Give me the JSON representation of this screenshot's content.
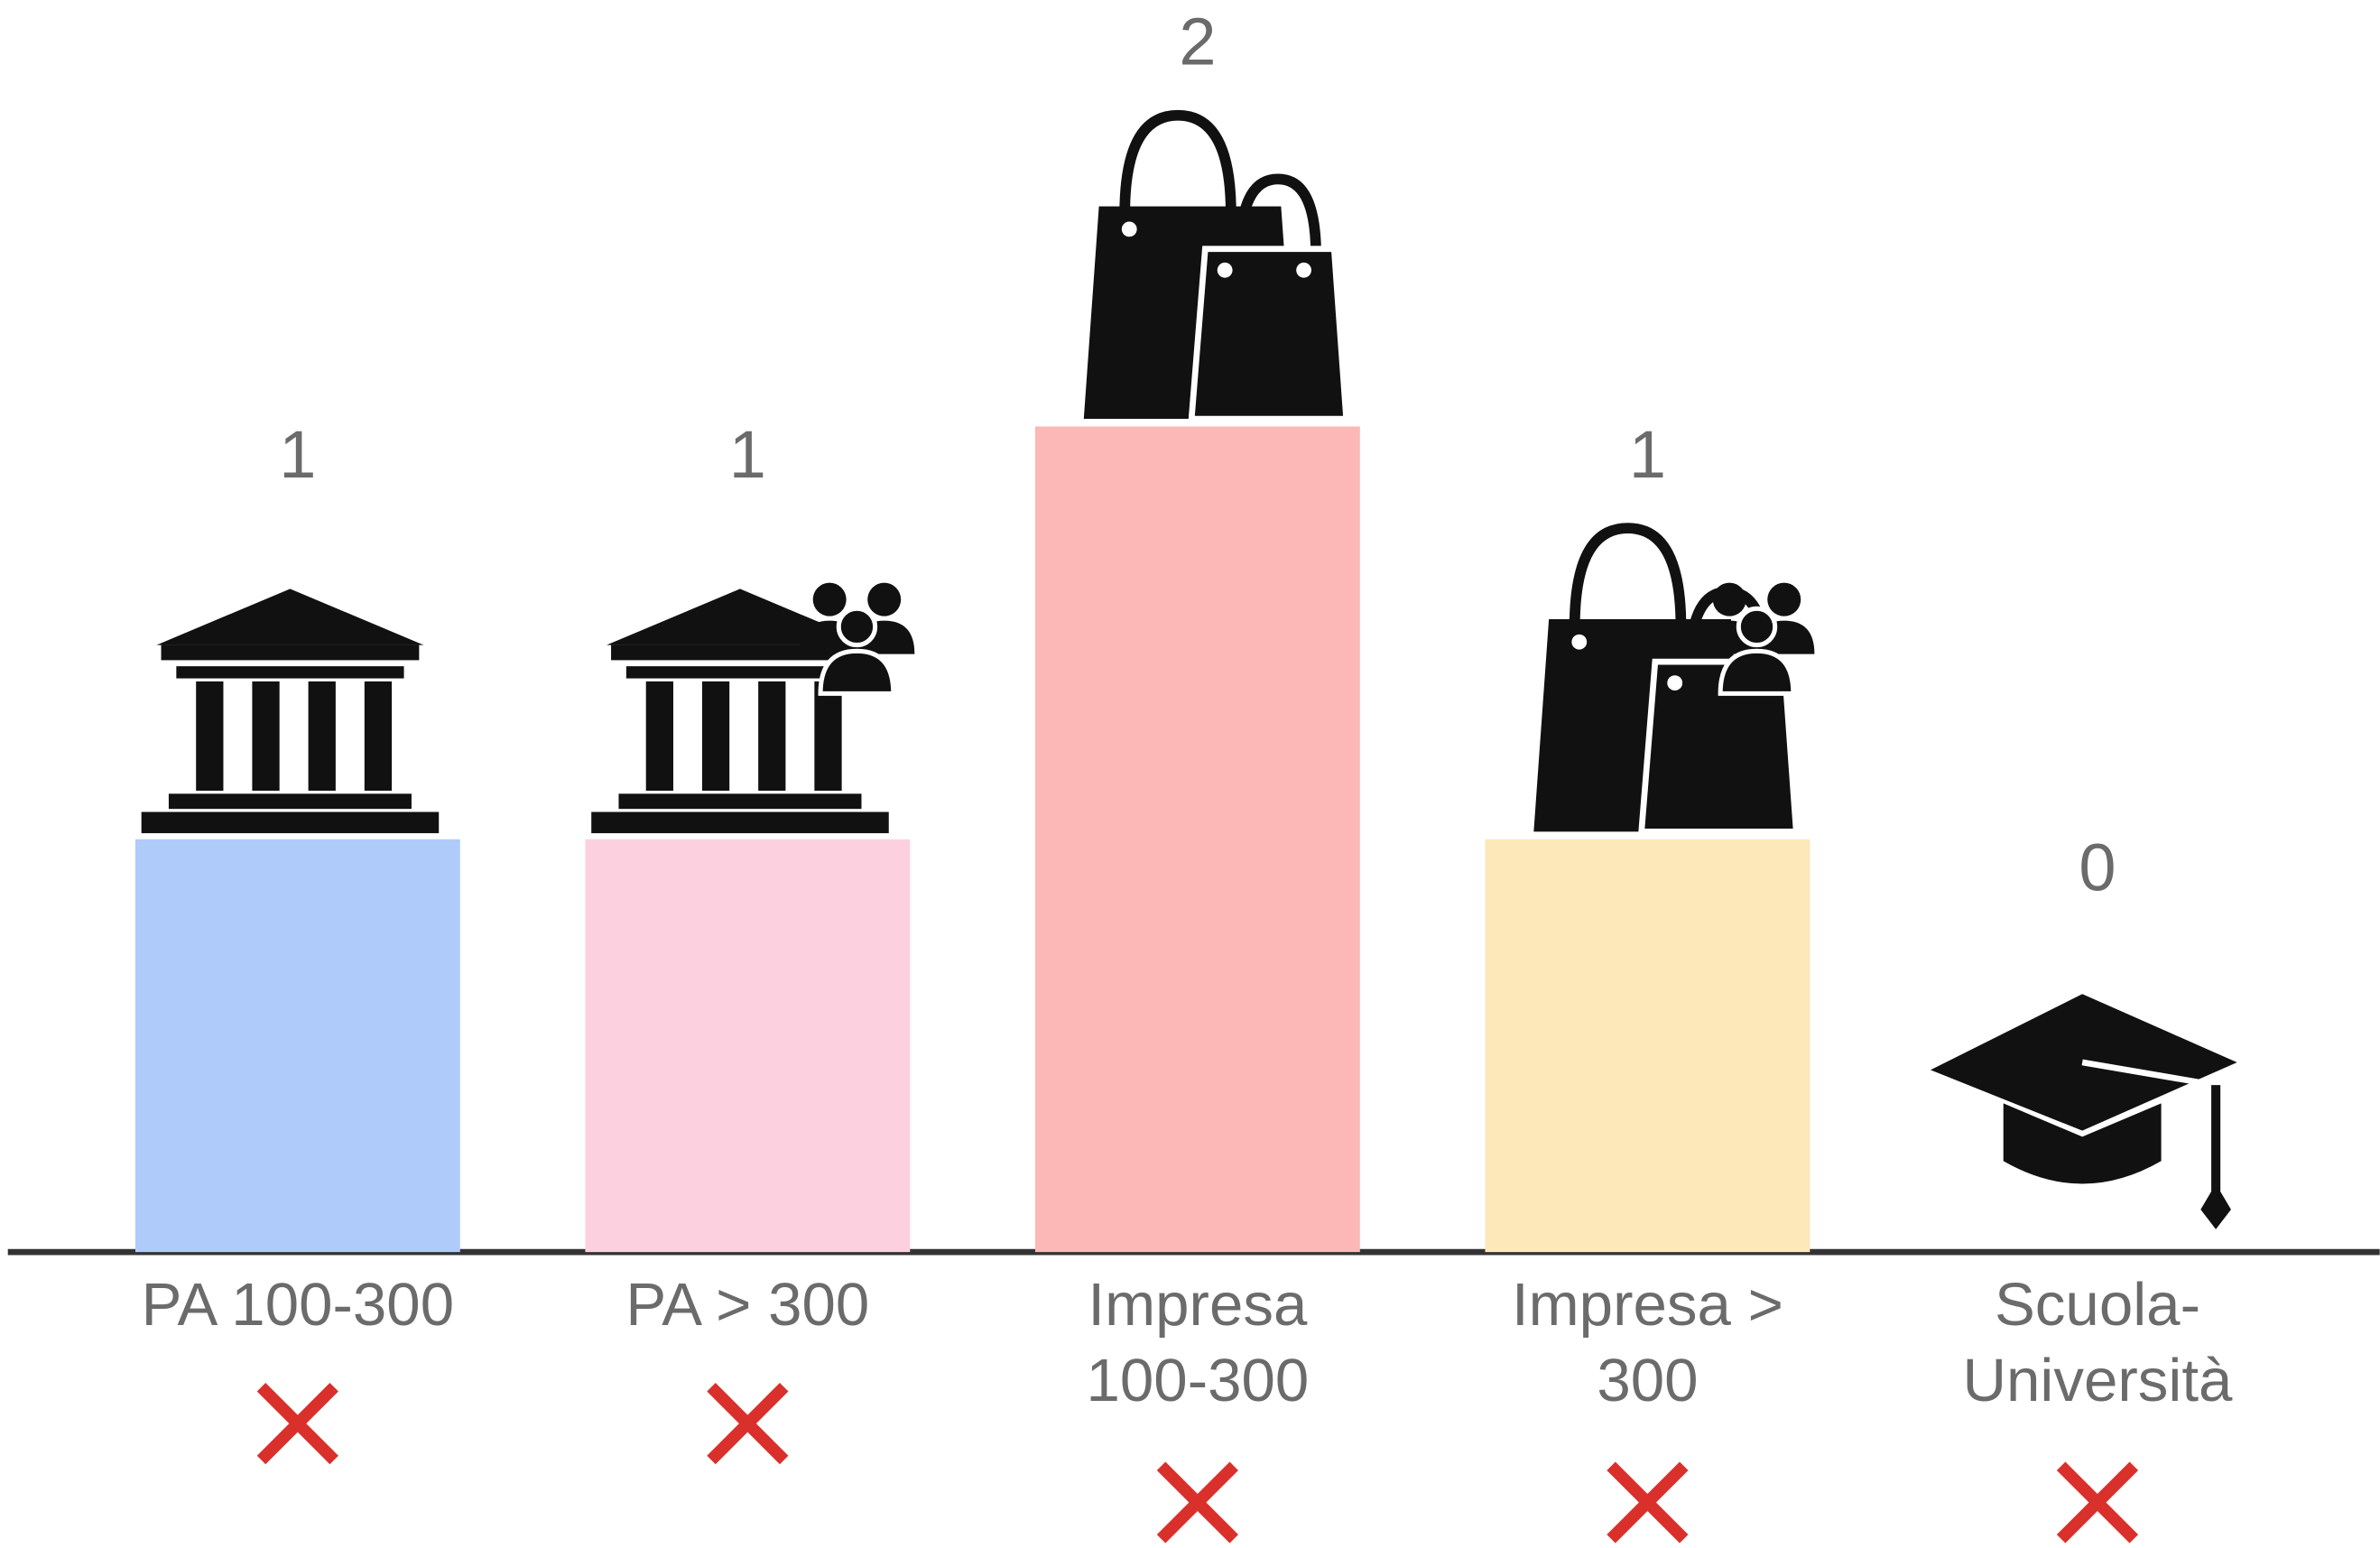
{
  "chart_data": {
    "type": "bar",
    "categories": [
      "PA 100-300",
      "PA > 300",
      "Impresa 100-300",
      "Impresa > 300",
      "Scuola-Università"
    ],
    "values": [
      1,
      1,
      2,
      1,
      0
    ],
    "colors": [
      "#aecbfa",
      "#fdd0df",
      "#fbb8b6",
      "#fde8b9",
      "#e0e0e0"
    ]
  }
}
